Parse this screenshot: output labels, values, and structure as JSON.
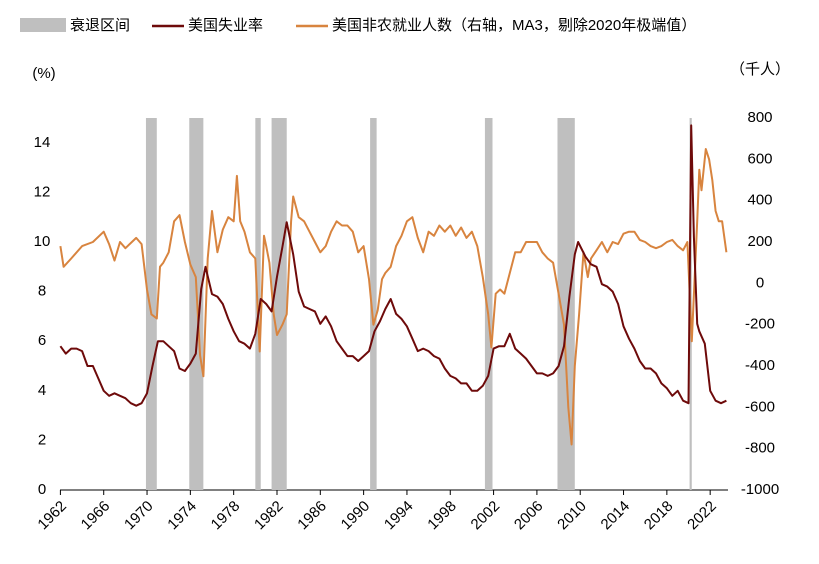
{
  "chart_data": {
    "type": "line",
    "xlim": [
      1962,
      2023.6
    ],
    "xticks": [
      1962,
      1966,
      1970,
      1974,
      1978,
      1982,
      1986,
      1990,
      1994,
      1998,
      2002,
      2006,
      2010,
      2014,
      2018,
      2022
    ],
    "ylim": [
      0,
      15
    ],
    "yticks": [
      0,
      2,
      4,
      6,
      8,
      10,
      12,
      14
    ],
    "y_unit": "(%)",
    "y2lim": [
      -1000,
      800
    ],
    "y2ticks": [
      -1000,
      -800,
      -600,
      -400,
      -200,
      0,
      200,
      400,
      600,
      800
    ],
    "y2_unit": "（千人）",
    "grid": false,
    "recessions": {
      "name": "衰退区间",
      "color": "#bfbfbf",
      "ranges": [
        [
          1969.9,
          1970.9
        ],
        [
          1973.9,
          1975.2
        ],
        [
          1980.0,
          1980.5
        ],
        [
          1981.5,
          1982.9
        ],
        [
          1990.6,
          1991.2
        ],
        [
          2001.2,
          2001.9
        ],
        [
          2007.9,
          2009.5
        ],
        [
          2020.1,
          2020.3
        ]
      ]
    },
    "series": [
      {
        "name": "美国失业率",
        "color": "#6e0a0a",
        "x": [
          1962,
          1962.5,
          1963,
          1963.5,
          1964,
          1964.5,
          1965,
          1965.5,
          1966,
          1966.5,
          1967,
          1967.5,
          1968,
          1968.5,
          1969,
          1969.5,
          1970,
          1970.5,
          1971,
          1971.5,
          1972,
          1972.5,
          1973,
          1973.5,
          1974,
          1974.5,
          1975,
          1975.4,
          1976,
          1976.5,
          1977,
          1977.5,
          1978,
          1978.5,
          1979,
          1979.5,
          1980,
          1980.5,
          1981,
          1981.5,
          1982,
          1982.5,
          1982.9,
          1983.5,
          1984,
          1984.5,
          1985,
          1985.5,
          1986,
          1986.5,
          1987,
          1987.5,
          1988,
          1988.5,
          1989,
          1989.5,
          1990,
          1990.5,
          1991,
          1991.5,
          1992,
          1992.5,
          1993,
          1993.5,
          1994,
          1994.5,
          1995,
          1995.5,
          1996,
          1996.5,
          1997,
          1997.5,
          1998,
          1998.5,
          1999,
          1999.5,
          2000,
          2000.5,
          2001,
          2001.5,
          2002,
          2002.5,
          2003,
          2003.5,
          2004,
          2004.5,
          2005,
          2005.5,
          2006,
          2006.5,
          2007,
          2007.5,
          2008,
          2008.5,
          2009,
          2009.5,
          2009.8,
          2010.5,
          2011,
          2011.5,
          2012,
          2012.5,
          2013,
          2013.5,
          2014,
          2014.5,
          2015,
          2015.5,
          2016,
          2016.5,
          2017,
          2017.5,
          2018,
          2018.5,
          2019,
          2019.5,
          2020,
          2020.25,
          2020.5,
          2020.8,
          2021,
          2021.5,
          2022,
          2022.5,
          2023,
          2023.5
        ],
        "values": [
          5.8,
          5.5,
          5.7,
          5.7,
          5.6,
          5.0,
          5.0,
          4.5,
          4.0,
          3.8,
          3.9,
          3.8,
          3.7,
          3.5,
          3.4,
          3.5,
          3.9,
          5.0,
          6.0,
          6.0,
          5.8,
          5.6,
          4.9,
          4.8,
          5.1,
          5.5,
          8.1,
          9.0,
          7.9,
          7.8,
          7.5,
          6.9,
          6.4,
          6.0,
          5.9,
          5.7,
          6.3,
          7.7,
          7.5,
          7.2,
          8.6,
          9.8,
          10.8,
          9.5,
          8.0,
          7.4,
          7.3,
          7.2,
          6.7,
          7.0,
          6.6,
          6.0,
          5.7,
          5.4,
          5.4,
          5.2,
          5.4,
          5.6,
          6.4,
          6.8,
          7.3,
          7.7,
          7.1,
          6.9,
          6.6,
          6.1,
          5.6,
          5.7,
          5.6,
          5.4,
          5.3,
          4.9,
          4.6,
          4.5,
          4.3,
          4.3,
          4.0,
          4.0,
          4.2,
          4.6,
          5.7,
          5.8,
          5.8,
          6.3,
          5.7,
          5.5,
          5.3,
          5.0,
          4.7,
          4.7,
          4.6,
          4.7,
          5.0,
          5.8,
          7.8,
          9.5,
          10.0,
          9.4,
          9.1,
          9.0,
          8.3,
          8.2,
          8.0,
          7.5,
          6.6,
          6.1,
          5.7,
          5.2,
          4.9,
          4.9,
          4.7,
          4.3,
          4.1,
          3.8,
          4.0,
          3.6,
          3.5,
          14.7,
          10.2,
          6.7,
          6.4,
          5.9,
          4.0,
          3.6,
          3.5,
          3.6
        ]
      },
      {
        "name": "美国非农就业人数（右轴，MA3，剔除2020年极端值）",
        "color": "#d8843f",
        "axis": "y2",
        "x": [
          1962,
          1962.3,
          1963,
          1964,
          1965,
          1966,
          1966.5,
          1967,
          1967.5,
          1968,
          1969,
          1969.5,
          1970,
          1970.4,
          1970.9,
          1971.2,
          1971.5,
          1972,
          1972.5,
          1973,
          1973.5,
          1974,
          1974.5,
          1974.9,
          1975.2,
          1975.6,
          1976,
          1976.5,
          1977,
          1977.5,
          1978,
          1978.3,
          1978.6,
          1979,
          1979.5,
          1980,
          1980.4,
          1980.8,
          1981,
          1981.3,
          1981.7,
          1982,
          1982.5,
          1982.9,
          1983.3,
          1983.5,
          1984,
          1984.5,
          1985,
          1985.5,
          1986,
          1986.5,
          1987,
          1987.5,
          1988,
          1988.5,
          1989,
          1989.5,
          1990,
          1990.5,
          1990.9,
          1991.3,
          1991.7,
          1992,
          1992.5,
          1993,
          1993.5,
          1994,
          1994.5,
          1995,
          1995.5,
          1996,
          1996.5,
          1997,
          1997.5,
          1998,
          1998.5,
          1999,
          1999.5,
          2000,
          2000.5,
          2001,
          2001.5,
          2001.8,
          2002.2,
          2002.6,
          2003,
          2003.5,
          2004,
          2004.5,
          2005,
          2005.5,
          2006,
          2006.5,
          2007,
          2007.5,
          2008,
          2008.5,
          2008.9,
          2009.2,
          2009.5,
          2009.9,
          2010.3,
          2010.7,
          2011,
          2011.5,
          2012,
          2012.5,
          2013,
          2013.5,
          2014,
          2014.5,
          2015,
          2015.5,
          2016,
          2016.5,
          2017,
          2017.5,
          2018,
          2018.5,
          2019,
          2019.5,
          2019.9,
          2020.3,
          2020.8,
          2021,
          2021.2,
          2021.6,
          2021.9,
          2022.2,
          2022.5,
          2022.8,
          2023.1,
          2023.5
        ],
        "values": [
          180,
          80,
          120,
          180,
          200,
          250,
          190,
          110,
          200,
          170,
          220,
          190,
          -30,
          -150,
          -170,
          80,
          100,
          150,
          300,
          330,
          200,
          90,
          30,
          -350,
          -450,
          120,
          350,
          150,
          260,
          320,
          300,
          520,
          300,
          250,
          150,
          120,
          -330,
          230,
          180,
          100,
          -150,
          -250,
          -200,
          -150,
          300,
          420,
          320,
          300,
          250,
          200,
          150,
          180,
          250,
          300,
          280,
          280,
          250,
          150,
          180,
          20,
          -200,
          -130,
          20,
          50,
          80,
          180,
          230,
          300,
          320,
          220,
          150,
          250,
          230,
          280,
          250,
          280,
          230,
          270,
          220,
          250,
          180,
          30,
          -150,
          -310,
          -50,
          -30,
          -50,
          50,
          150,
          150,
          200,
          200,
          200,
          150,
          120,
          100,
          -50,
          -200,
          -600,
          -780,
          -400,
          -150,
          150,
          30,
          120,
          160,
          200,
          150,
          200,
          190,
          240,
          250,
          250,
          210,
          200,
          180,
          170,
          180,
          200,
          210,
          180,
          160,
          200,
          -280,
          300,
          550,
          450,
          650,
          600,
          500,
          350,
          300,
          300,
          150
        ]
      }
    ]
  }
}
